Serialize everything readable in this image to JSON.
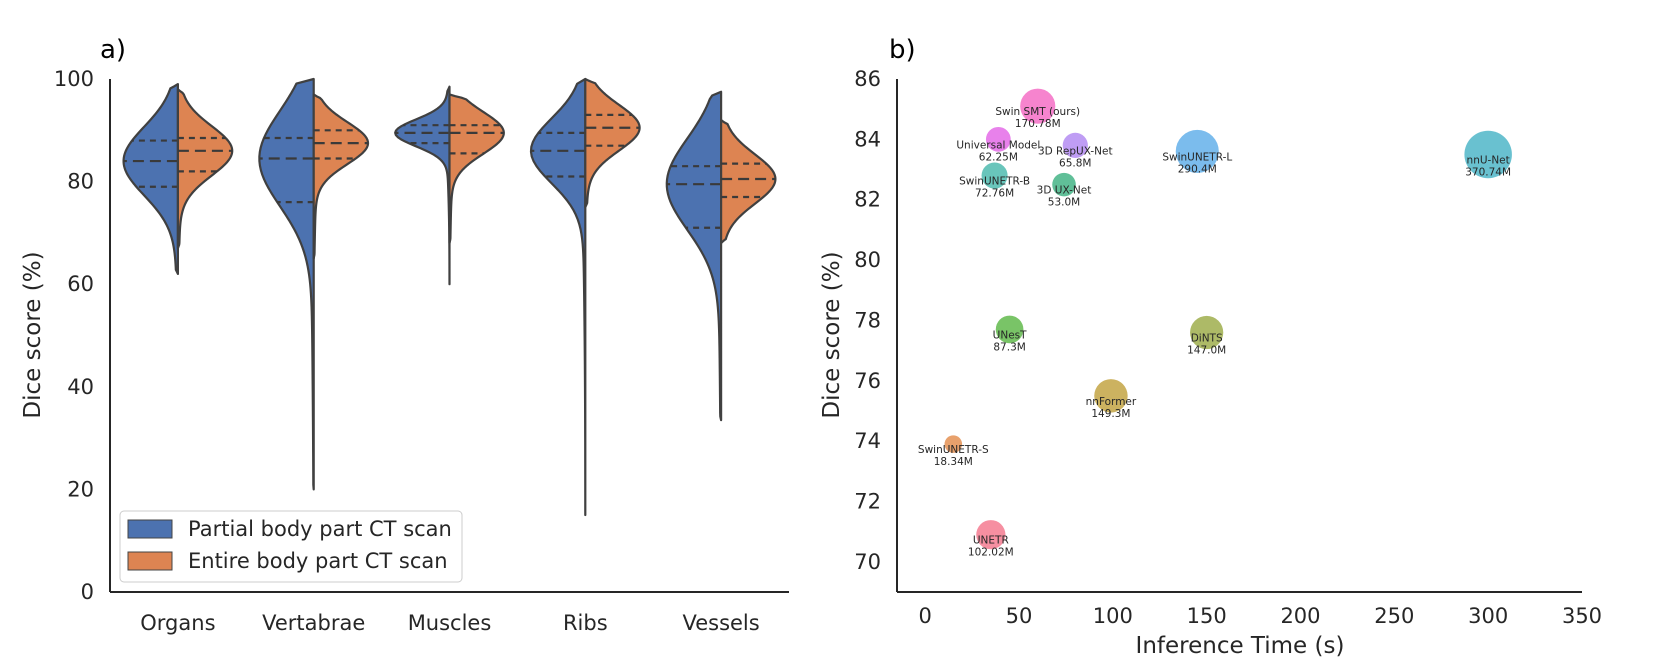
{
  "chart_data": [
    {
      "panel": "a)",
      "type": "violin",
      "split": true,
      "categories": [
        "Organs",
        "Vertabrae",
        "Muscles",
        "Ribs",
        "Vessels"
      ],
      "ylabel": "Dice score (%)",
      "ylim": [
        0,
        100
      ],
      "yticks": [
        0,
        20,
        40,
        60,
        80,
        100
      ],
      "legend": {
        "placement": "lower-left",
        "entries": [
          {
            "label": "Partial body part CT scan",
            "color": "#4c72b0"
          },
          {
            "label": "Entire body part CT scan",
            "color": "#dd8452"
          }
        ]
      },
      "series": [
        {
          "name": "Partial body part CT scan",
          "color": "#4c72b0",
          "violins": [
            {
              "category": "Organs",
              "min": 62,
              "max": 99,
              "quartiles": [
                79,
                84,
                88
              ]
            },
            {
              "category": "Vertabrae",
              "min": 20,
              "max": 100,
              "quartiles": [
                76,
                84.5,
                88.5
              ]
            },
            {
              "category": "Muscles",
              "min": 60,
              "max": 98.5,
              "quartiles": [
                87.5,
                89.5,
                91
              ]
            },
            {
              "category": "Ribs",
              "min": 15,
              "max": 100,
              "quartiles": [
                81,
                86,
                89.5
              ]
            },
            {
              "category": "Vessels",
              "min": 33.5,
              "max": 97.5,
              "quartiles": [
                71,
                79.5,
                83
              ]
            }
          ]
        },
        {
          "name": "Entire body part CT scan",
          "color": "#dd8452",
          "violins": [
            {
              "category": "Organs",
              "min": 67,
              "max": 98,
              "quartiles": [
                82,
                86,
                88.5
              ]
            },
            {
              "category": "Vertabrae",
              "min": 65,
              "max": 97,
              "quartiles": [
                84.5,
                87.5,
                90
              ]
            },
            {
              "category": "Muscles",
              "min": 68,
              "max": 97,
              "quartiles": [
                85.5,
                89.5,
                91
              ]
            },
            {
              "category": "Ribs",
              "min": 75,
              "max": 100,
              "quartiles": [
                87,
                90.5,
                93
              ]
            },
            {
              "category": "Vessels",
              "min": 68,
              "max": 92,
              "quartiles": [
                77,
                80.5,
                83.5
              ]
            }
          ]
        }
      ]
    },
    {
      "panel": "b)",
      "type": "scatter",
      "bubble": true,
      "xlabel": "Inference Time (s)",
      "ylabel": "Dice score (%)",
      "xlim": [
        -15,
        350
      ],
      "xticks": [
        0,
        50,
        100,
        150,
        200,
        250,
        300,
        350
      ],
      "ylim": [
        69,
        86
      ],
      "yticks": [
        70,
        72,
        74,
        76,
        78,
        80,
        82,
        84,
        86
      ],
      "points": [
        {
          "name": "Swin SMT (ours)",
          "params": "170.78M",
          "params_m": 170.78,
          "x": 60,
          "y": 85.1,
          "color": "#f46fc6"
        },
        {
          "name": "Universal Model",
          "params": "62.25M",
          "params_m": 62.25,
          "x": 39,
          "y": 84.0,
          "color": "#e46be8"
        },
        {
          "name": "3D RepUX-Net",
          "params": "65.8M",
          "params_m": 65.8,
          "x": 80,
          "y": 83.8,
          "color": "#b48cf2"
        },
        {
          "name": "SwinUNETR-L",
          "params": "290.4M",
          "params_m": 290.4,
          "x": 145,
          "y": 83.6,
          "color": "#64b0ea"
        },
        {
          "name": "nnU-Net",
          "params": "370.74M",
          "params_m": 370.74,
          "x": 300,
          "y": 83.5,
          "color": "#4fb6c8"
        },
        {
          "name": "SwinUNETR-B",
          "params": "72.76M",
          "params_m": 72.76,
          "x": 37,
          "y": 82.8,
          "color": "#4fbbaf"
        },
        {
          "name": "3D UX-Net",
          "params": "53.0M",
          "params_m": 53.0,
          "x": 74,
          "y": 82.5,
          "color": "#44b486"
        },
        {
          "name": "UNesT",
          "params": "87.3M",
          "params_m": 87.3,
          "x": 45,
          "y": 77.7,
          "color": "#62ba4c"
        },
        {
          "name": "DiNTS",
          "params": "147.0M",
          "params_m": 147.0,
          "x": 150,
          "y": 77.6,
          "color": "#9fae4c"
        },
        {
          "name": "nnFormer",
          "params": "149.3M",
          "params_m": 149.3,
          "x": 99,
          "y": 75.5,
          "color": "#c3a544"
        },
        {
          "name": "SwinUNETR-S",
          "params": "18.34M",
          "params_m": 18.34,
          "x": 15,
          "y": 73.9,
          "color": "#e49152"
        },
        {
          "name": "UNETR",
          "params": "102.02M",
          "params_m": 102.02,
          "x": 35,
          "y": 70.9,
          "color": "#f47b90"
        }
      ]
    }
  ]
}
